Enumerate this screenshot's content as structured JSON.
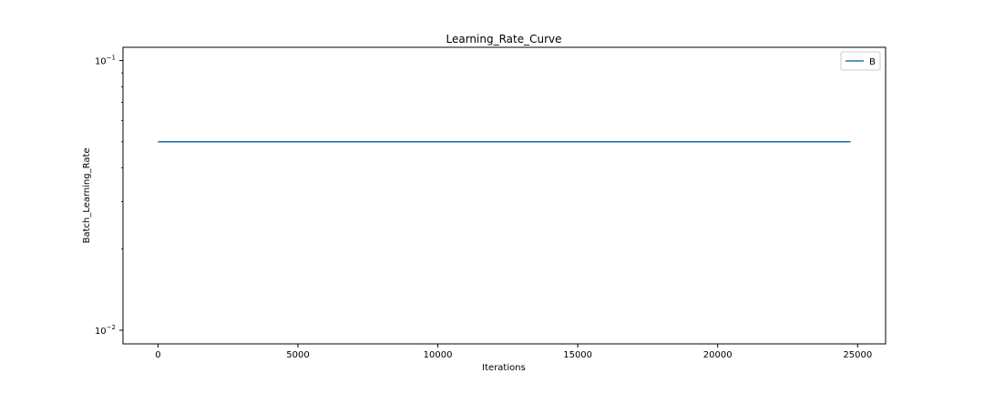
{
  "chart_data": {
    "type": "line",
    "title": "Learning_Rate_Curve",
    "xlabel": "Iterations",
    "ylabel": "Batch_Learning_Rate",
    "yscale": "log",
    "xlim": [
      -1250,
      26000
    ],
    "ylim": [
      0.0089,
      0.112
    ],
    "x_ticks": [
      0,
      5000,
      10000,
      15000,
      20000,
      25000
    ],
    "x_tick_labels": [
      "0",
      "5000",
      "10000",
      "15000",
      "20000",
      "25000"
    ],
    "y_major_ticks": [
      0.01,
      0.1
    ],
    "y_tick_labels": [
      {
        "base": "10",
        "exp": "−2"
      },
      {
        "base": "10",
        "exp": "−1"
      }
    ],
    "y_minor_ticks": [
      0.02,
      0.03,
      0.04,
      0.05,
      0.06,
      0.07,
      0.08,
      0.09
    ],
    "grid": false,
    "legend_position": "top-right",
    "series": [
      {
        "name": "B",
        "color": "#1f77b4",
        "x": [
          0,
          24750
        ],
        "y": [
          0.05,
          0.05
        ]
      }
    ]
  }
}
